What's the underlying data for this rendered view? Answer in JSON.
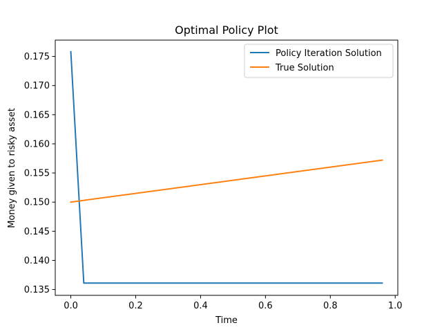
{
  "chart_data": {
    "type": "line",
    "title": "Optimal Policy Plot",
    "xlabel": "Time",
    "ylabel": "Money given to risky asset",
    "xlim": [
      -0.048,
      1.008
    ],
    "ylim": [
      0.134,
      0.1778
    ],
    "xticks": [
      0.0,
      0.2,
      0.4,
      0.6,
      0.8,
      1.0
    ],
    "xtick_labels": [
      "0.0",
      "0.2",
      "0.4",
      "0.6",
      "0.8",
      "1.0"
    ],
    "yticks": [
      0.135,
      0.14,
      0.145,
      0.15,
      0.155,
      0.16,
      0.165,
      0.17,
      0.175
    ],
    "ytick_labels": [
      "0.135",
      "0.140",
      "0.145",
      "0.150",
      "0.155",
      "0.160",
      "0.165",
      "0.170",
      "0.175"
    ],
    "grid": false,
    "legend_position": "top-right",
    "series": [
      {
        "name": "Policy Iteration Solution",
        "color": "#1f77b4",
        "x": [
          0.0,
          0.04,
          0.96
        ],
        "y": [
          0.1758,
          0.1361,
          0.1361
        ]
      },
      {
        "name": "True Solution",
        "color": "#ff7f0e",
        "x": [
          0.0,
          0.96
        ],
        "y": [
          0.15,
          0.1572
        ]
      }
    ]
  }
}
